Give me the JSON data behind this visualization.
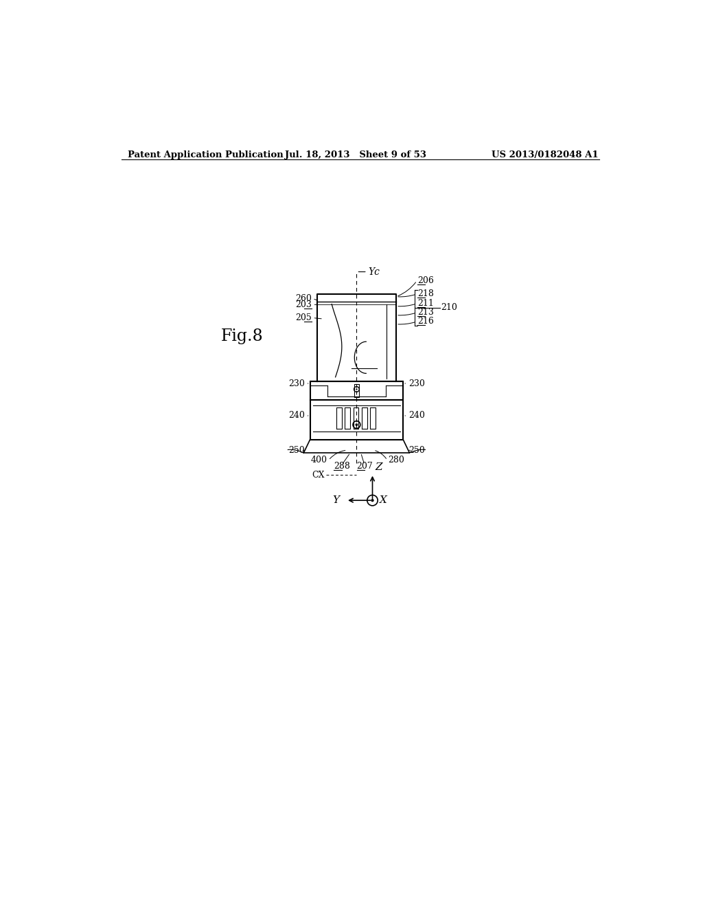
{
  "header_left": "Patent Application Publication",
  "header_mid": "Jul. 18, 2013   Sheet 9 of 53",
  "header_right": "US 2013/0182048 A1",
  "fig_label": "Fig.8",
  "bg_color": "#ffffff",
  "line_color": "#000000"
}
